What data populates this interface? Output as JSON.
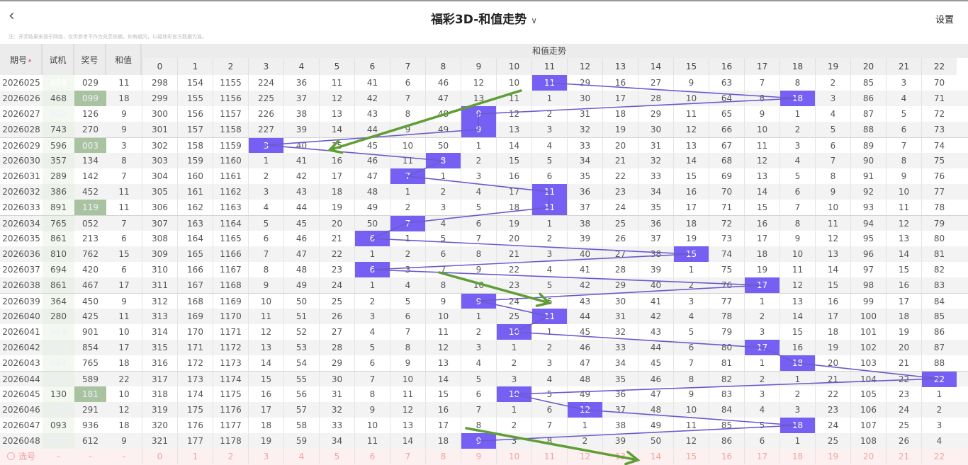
{
  "header": {
    "back_icon": "chevron-left-icon",
    "title": "福彩3D-和值走势",
    "title_chevron": "chevron-down-icon",
    "settings": "设置"
  },
  "note": "注：开奖结果来源于网络，仅供参考不作为兑奖依据，如有疑问，以福体彩官方数据为准。",
  "columns": {
    "issue": "期号",
    "test": "试机",
    "prize": "奖号",
    "sum": "和值",
    "trend_group": "和值走势",
    "sums": [
      "0",
      "1",
      "2",
      "3",
      "4",
      "5",
      "6",
      "7",
      "8",
      "9",
      "10",
      "11",
      "12",
      "13",
      "14",
      "15",
      "16",
      "17",
      "18",
      "19",
      "20",
      "21",
      "22"
    ]
  },
  "colors": {
    "hit": "#7660f4",
    "line": "#6a5acd",
    "highlight_green": "#a9c3a0",
    "highlight_dark": "#0f1738",
    "annotation_arrow": "#5f9e35"
  },
  "rows": [
    {
      "issue": "2026025",
      "test": "888",
      "test_hl": "dark",
      "prize": "029",
      "prize_hl": "",
      "sum": 11,
      "cells": [
        298,
        154,
        1155,
        224,
        36,
        11,
        41,
        6,
        46,
        12,
        10,
        11,
        29,
        16,
        27,
        9,
        63,
        7,
        8,
        2,
        85,
        3,
        70
      ]
    },
    {
      "issue": "2026026",
      "test": "468",
      "test_hl": "",
      "prize": "099",
      "prize_hl": "green",
      "sum": 18,
      "cells": [
        299,
        155,
        1156,
        225,
        37,
        12,
        42,
        7,
        47,
        13,
        11,
        1,
        30,
        17,
        28,
        10,
        64,
        8,
        18,
        3,
        86,
        4,
        71
      ]
    },
    {
      "issue": "2026027",
      "test": "909",
      "test_hl": "green",
      "prize": "126",
      "prize_hl": "",
      "sum": 9,
      "cells": [
        300,
        156,
        1157,
        226,
        38,
        13,
        43,
        8,
        48,
        9,
        12,
        2,
        31,
        18,
        29,
        11,
        65,
        9,
        1,
        4,
        87,
        5,
        72
      ]
    },
    {
      "issue": "2026028",
      "test": "743",
      "test_hl": "",
      "prize": "270",
      "prize_hl": "",
      "sum": 9,
      "cells": [
        301,
        157,
        1158,
        227,
        39,
        14,
        44,
        9,
        49,
        9,
        13,
        3,
        32,
        19,
        30,
        12,
        66,
        10,
        2,
        5,
        88,
        6,
        73
      ]
    },
    {
      "issue": "2026029",
      "test": "596",
      "test_hl": "",
      "prize": "003",
      "prize_hl": "green",
      "sum": 3,
      "cells": [
        302,
        158,
        1159,
        3,
        40,
        15,
        45,
        10,
        50,
        1,
        14,
        4,
        33,
        20,
        31,
        13,
        67,
        11,
        3,
        6,
        89,
        7,
        74
      ]
    },
    {
      "issue": "2026030",
      "test": "357",
      "test_hl": "",
      "prize": "134",
      "prize_hl": "",
      "sum": 8,
      "cells": [
        303,
        159,
        1160,
        1,
        41,
        16,
        46,
        11,
        8,
        2,
        15,
        5,
        34,
        21,
        32,
        14,
        68,
        12,
        4,
        7,
        90,
        8,
        75
      ]
    },
    {
      "issue": "2026031",
      "test": "289",
      "test_hl": "",
      "prize": "142",
      "prize_hl": "",
      "sum": 7,
      "cells": [
        304,
        160,
        1161,
        2,
        42,
        17,
        47,
        7,
        1,
        3,
        16,
        6,
        35,
        22,
        33,
        15,
        69,
        13,
        5,
        8,
        91,
        9,
        76
      ]
    },
    {
      "issue": "2026032",
      "test": "386",
      "test_hl": "",
      "prize": "452",
      "prize_hl": "",
      "sum": 11,
      "cells": [
        305,
        161,
        1162,
        3,
        43,
        18,
        48,
        1,
        2,
        4,
        17,
        11,
        36,
        23,
        34,
        16,
        70,
        14,
        6,
        9,
        92,
        10,
        77
      ]
    },
    {
      "issue": "2026033",
      "test": "891",
      "test_hl": "",
      "prize": "119",
      "prize_hl": "green",
      "sum": 11,
      "cells": [
        306,
        162,
        1163,
        4,
        44,
        19,
        49,
        2,
        3,
        5,
        18,
        11,
        37,
        24,
        35,
        17,
        71,
        15,
        7,
        10,
        93,
        11,
        78
      ]
    },
    {
      "issue": "2026034",
      "test": "765",
      "test_hl": "",
      "prize": "052",
      "prize_hl": "",
      "sum": 7,
      "cells": [
        307,
        163,
        1164,
        5,
        45,
        20,
        50,
        7,
        4,
        6,
        19,
        1,
        38,
        25,
        36,
        18,
        72,
        16,
        8,
        11,
        94,
        12,
        79
      ]
    },
    {
      "issue": "2026035",
      "test": "861",
      "test_hl": "",
      "prize": "213",
      "prize_hl": "",
      "sum": 6,
      "cells": [
        308,
        164,
        1165,
        6,
        46,
        21,
        6,
        1,
        5,
        7,
        20,
        2,
        39,
        26,
        37,
        19,
        73,
        17,
        9,
        12,
        95,
        13,
        80
      ]
    },
    {
      "issue": "2026036",
      "test": "810",
      "test_hl": "",
      "prize": "762",
      "prize_hl": "",
      "sum": 15,
      "cells": [
        309,
        165,
        1166,
        7,
        47,
        22,
        1,
        2,
        6,
        8,
        21,
        3,
        40,
        27,
        38,
        15,
        74,
        18,
        10,
        13,
        96,
        14,
        81
      ]
    },
    {
      "issue": "2026037",
      "test": "694",
      "test_hl": "",
      "prize": "420",
      "prize_hl": "",
      "sum": 6,
      "cells": [
        310,
        166,
        1167,
        8,
        48,
        23,
        6,
        3,
        7,
        9,
        22,
        4,
        41,
        28,
        39,
        1,
        75,
        19,
        11,
        14,
        97,
        15,
        82
      ]
    },
    {
      "issue": "2026038",
      "test": "861",
      "test_hl": "",
      "prize": "467",
      "prize_hl": "",
      "sum": 17,
      "cells": [
        311,
        167,
        1168,
        9,
        49,
        24,
        1,
        4,
        8,
        10,
        23,
        5,
        42,
        29,
        40,
        2,
        76,
        17,
        12,
        15,
        98,
        16,
        83
      ]
    },
    {
      "issue": "2026039",
      "test": "364",
      "test_hl": "",
      "prize": "450",
      "prize_hl": "",
      "sum": 9,
      "cells": [
        312,
        168,
        1169,
        10,
        50,
        25,
        2,
        5,
        9,
        9,
        24,
        6,
        43,
        30,
        41,
        3,
        77,
        1,
        13,
        16,
        99,
        17,
        84
      ]
    },
    {
      "issue": "2026040",
      "test": "280",
      "test_hl": "",
      "prize": "425",
      "prize_hl": "",
      "sum": 11,
      "cells": [
        313,
        169,
        1170,
        11,
        51,
        26,
        3,
        6,
        10,
        1,
        25,
        11,
        44,
        31,
        42,
        4,
        78,
        2,
        14,
        17,
        100,
        18,
        85
      ]
    },
    {
      "issue": "2026041",
      "test": "969",
      "test_hl": "green",
      "prize": "901",
      "prize_hl": "",
      "sum": 10,
      "cells": [
        314,
        170,
        1171,
        12,
        52,
        27,
        4,
        7,
        11,
        2,
        10,
        1,
        45,
        32,
        43,
        5,
        79,
        3,
        15,
        18,
        101,
        19,
        86
      ]
    },
    {
      "issue": "2026042",
      "test": "448",
      "test_hl": "green",
      "prize": "854",
      "prize_hl": "",
      "sum": 17,
      "cells": [
        315,
        171,
        1172,
        13,
        53,
        28,
        5,
        8,
        12,
        3,
        1,
        2,
        46,
        33,
        44,
        6,
        80,
        17,
        16,
        19,
        102,
        20,
        87
      ]
    },
    {
      "issue": "2026043",
      "test": "464",
      "test_hl": "green",
      "prize": "765",
      "prize_hl": "",
      "sum": 18,
      "cells": [
        316,
        172,
        1173,
        14,
        54,
        29,
        6,
        9,
        13,
        4,
        2,
        3,
        47,
        34,
        45,
        7,
        81,
        1,
        18,
        20,
        103,
        21,
        88
      ]
    },
    {
      "issue": "2026044",
      "test": "525",
      "test_hl": "green",
      "prize": "589",
      "prize_hl": "",
      "sum": 22,
      "cells": [
        317,
        173,
        1174,
        15,
        55,
        30,
        7,
        10,
        14,
        5,
        3,
        4,
        48,
        35,
        46,
        8,
        82,
        2,
        1,
        21,
        104,
        22,
        22
      ]
    },
    {
      "issue": "2026045",
      "test": "130",
      "test_hl": "",
      "prize": "181",
      "prize_hl": "green",
      "sum": 10,
      "cells": [
        318,
        174,
        1175,
        16,
        56,
        31,
        8,
        11,
        15,
        6,
        10,
        5,
        49,
        36,
        47,
        9,
        83,
        3,
        2,
        22,
        105,
        23,
        1
      ]
    },
    {
      "issue": "2026046",
      "test": "336",
      "test_hl": "green",
      "prize": "291",
      "prize_hl": "",
      "sum": 12,
      "cells": [
        319,
        175,
        1176,
        17,
        57,
        32,
        9,
        12,
        16,
        7,
        1,
        6,
        12,
        37,
        48,
        10,
        84,
        4,
        3,
        23,
        106,
        24,
        2
      ]
    },
    {
      "issue": "2026047",
      "test": "093",
      "test_hl": "",
      "prize": "936",
      "prize_hl": "",
      "sum": 18,
      "cells": [
        320,
        176,
        1177,
        18,
        58,
        33,
        10,
        13,
        17,
        8,
        2,
        7,
        1,
        38,
        49,
        11,
        85,
        5,
        18,
        24,
        107,
        25,
        3
      ]
    },
    {
      "issue": "2026048",
      "test": "887",
      "test_hl": "green",
      "prize": "612",
      "prize_hl": "",
      "sum": 9,
      "cells": [
        321,
        177,
        1178,
        19,
        59,
        34,
        11,
        14,
        18,
        9,
        3,
        8,
        2,
        39,
        50,
        12,
        86,
        6,
        1,
        25,
        108,
        26,
        4
      ]
    }
  ],
  "footer": {
    "label": "选号",
    "test": "-",
    "prize": "-",
    "sum": "-",
    "picks": [
      "0",
      "1",
      "2",
      "3",
      "4",
      "5",
      "6",
      "7",
      "8",
      "9",
      "10",
      "11",
      "12",
      "13",
      "14",
      "15",
      "16",
      "17",
      "18",
      "19",
      "20",
      "21",
      "22"
    ]
  }
}
